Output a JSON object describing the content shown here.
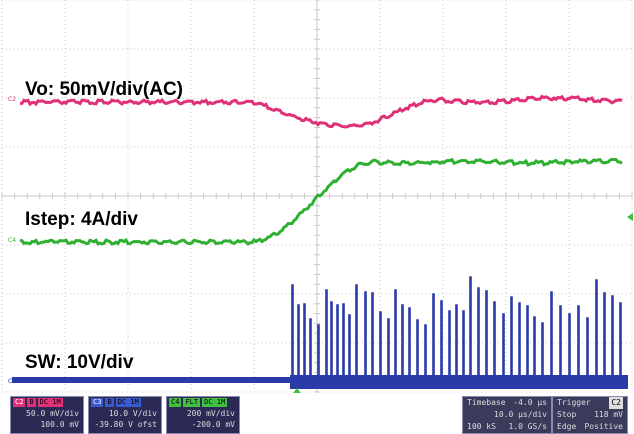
{
  "traces": {
    "vo_label": "Vo: 50mV/div(AC)",
    "istep_label": "Istep: 4A/div",
    "sw_label": "SW: 10V/div",
    "c2_tag": "C2",
    "c4_tag": "C4",
    "c3_tag": "C3"
  },
  "colors": {
    "grid": "#c8c8c8",
    "vo": "#e0307a",
    "istep": "#30b030",
    "sw": "#2a3aa8"
  },
  "channels": [
    {
      "name": "C2",
      "color": "#e0307a",
      "chip1": "B",
      "chip2": "DC 1M",
      "line1": "50.0 mV/div",
      "line2": "100.0 mV"
    },
    {
      "name": "C3",
      "color": "#3a5ad0",
      "chip1": "B",
      "chip2": "DC 1M",
      "line1": "10.0 V/div",
      "line2": "-39.80 V ofst"
    },
    {
      "name": "C4",
      "color": "#40c040",
      "chip1": "FLT",
      "chip2": "DC 1M",
      "line1": "200 mV/div",
      "line2": "-200.0 mV"
    }
  ],
  "timebase": {
    "label": "Timebase",
    "offset": "-4.0 μs",
    "scale": "10.0 μs/div",
    "samples": "100 kS",
    "rate": "1.0 GS/s"
  },
  "trigger": {
    "label": "Trigger",
    "channel": "C2",
    "mode": "Stop",
    "level": "118 mV",
    "type": "Edge",
    "slope": "Positive"
  }
}
